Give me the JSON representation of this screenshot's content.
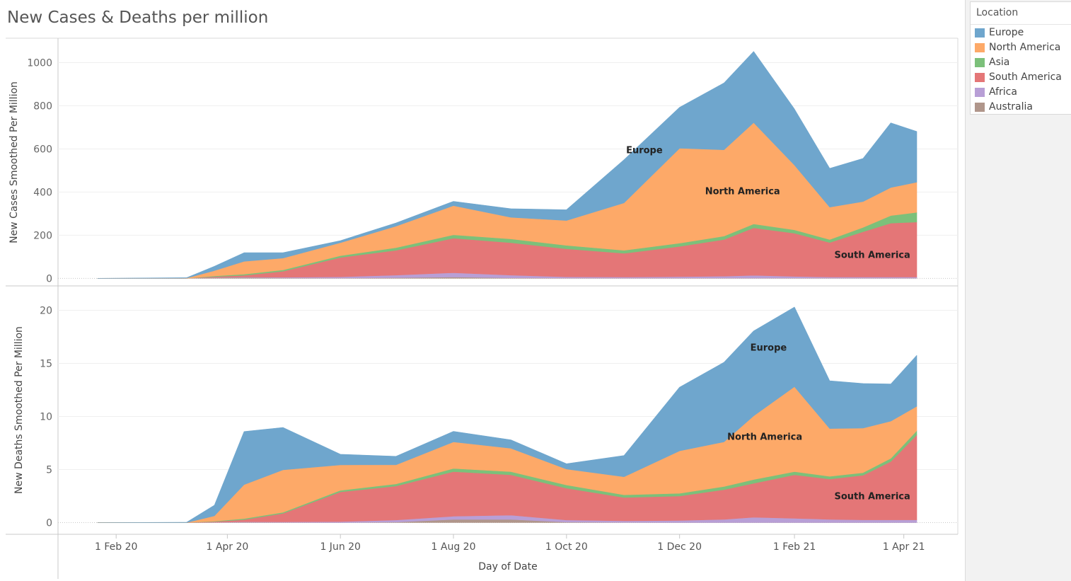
{
  "title": "New Cases & Deaths per million",
  "legend": {
    "title": "Location",
    "items": [
      {
        "label": "Europe",
        "color": "#6fa6cd"
      },
      {
        "label": "North America",
        "color": "#fda968"
      },
      {
        "label": "Asia",
        "color": "#7cc07a"
      },
      {
        "label": "South America",
        "color": "#e47677"
      },
      {
        "label": "Africa",
        "color": "#b89fd6"
      },
      {
        "label": "Australia",
        "color": "#b0968b"
      }
    ]
  },
  "chart_data": {
    "type": "area",
    "stacked": true,
    "xlabel": "Day of Date",
    "x_ticks": [
      "1 Feb 20",
      "1 Apr 20",
      "1 Jun 20",
      "1 Aug 20",
      "1 Oct 20",
      "1 Dec 20",
      "1 Feb 21",
      "1 Apr 21"
    ],
    "xlim": [
      "2020-01-22",
      "2021-04-08"
    ],
    "x": [
      "2020-01-22",
      "2020-03-10",
      "2020-03-25",
      "2020-04-10",
      "2020-05-01",
      "2020-06-01",
      "2020-07-01",
      "2020-08-01",
      "2020-09-01",
      "2020-10-01",
      "2020-11-01",
      "2020-12-01",
      "2020-12-25",
      "2021-01-10",
      "2021-02-01",
      "2021-02-20",
      "2021-03-10",
      "2021-03-25",
      "2021-04-08"
    ],
    "panels": [
      {
        "ylabel": "New Cases Smoothed Per Million",
        "yticks": [
          0,
          200,
          400,
          600,
          800,
          1000
        ],
        "ylim": [
          -35,
          1110
        ],
        "series": [
          {
            "name": "Australia",
            "values": [
              0,
              0,
              4,
              4,
              2,
              1,
              3,
              6,
              2,
              1,
              1,
              1,
              1,
              1,
              1,
              1,
              1,
              1,
              1
            ]
          },
          {
            "name": "Africa",
            "values": [
              0,
              0,
              1,
              2,
              3,
              6,
              12,
              20,
              13,
              6,
              5,
              7,
              9,
              13,
              8,
              5,
              5,
              5,
              5
            ]
          },
          {
            "name": "South America",
            "values": [
              0,
              0,
              3,
              8,
              28,
              90,
              115,
              160,
              150,
              130,
              110,
              140,
              170,
              220,
              200,
              160,
              210,
              250,
              255
            ]
          },
          {
            "name": "Asia",
            "values": [
              0,
              0,
              3,
              5,
              6,
              8,
              12,
              16,
              18,
              16,
              14,
              15,
              16,
              18,
              16,
              14,
              20,
              35,
              45
            ]
          },
          {
            "name": "North America",
            "values": [
              0,
              1,
              25,
              60,
              55,
              60,
              100,
              135,
              100,
              115,
              220,
              440,
              400,
              470,
              300,
              150,
              120,
              130,
              140
            ]
          },
          {
            "name": "Europe",
            "values": [
              0,
              2,
              20,
              40,
              25,
              10,
              15,
              20,
              40,
              50,
              200,
              190,
              310,
              330,
              260,
              180,
              200,
              300,
              235
            ]
          }
        ],
        "annotations": [
          {
            "text": "Europe",
            "date": "2020-11-12",
            "value": 580
          },
          {
            "text": "North America",
            "date": "2021-01-04",
            "value": 390
          },
          {
            "text": "South America",
            "date": "2021-03-15",
            "value": 95
          }
        ]
      },
      {
        "ylabel": "New Deaths Smoothed Per Million",
        "yticks": [
          0,
          5,
          10,
          15,
          20
        ],
        "ylim": [
          -1.1,
          22.3
        ],
        "series": [
          {
            "name": "Australia",
            "values": [
              0,
              0,
              0.02,
              0.03,
              0.02,
              0.01,
              0.05,
              0.3,
              0.3,
              0.05,
              0.02,
              0.01,
              0.01,
              0.01,
              0.01,
              0.01,
              0.01,
              0.01,
              0.01
            ]
          },
          {
            "name": "Africa",
            "values": [
              0,
              0,
              0.02,
              0.05,
              0.05,
              0.08,
              0.2,
              0.3,
              0.4,
              0.2,
              0.15,
              0.2,
              0.3,
              0.5,
              0.4,
              0.3,
              0.25,
              0.25,
              0.25
            ]
          },
          {
            "name": "South America",
            "values": [
              0,
              0,
              0.05,
              0.2,
              0.8,
              2.8,
              3.2,
              4.2,
              3.8,
              3.0,
              2.2,
              2.3,
              2.8,
              3.2,
              4.1,
              3.8,
              4.2,
              5.5,
              8.0
            ]
          },
          {
            "name": "Asia",
            "values": [
              0,
              0,
              0.05,
              0.1,
              0.1,
              0.15,
              0.2,
              0.3,
              0.3,
              0.3,
              0.25,
              0.25,
              0.3,
              0.35,
              0.3,
              0.25,
              0.25,
              0.3,
              0.4
            ]
          },
          {
            "name": "North America",
            "values": [
              0,
              0.01,
              0.5,
              3.2,
              4.0,
              2.4,
              1.8,
              2.5,
              2.2,
              1.5,
              1.7,
              4.0,
              4.2,
              6.0,
              8.0,
              4.5,
              4.2,
              3.5,
              2.3
            ]
          },
          {
            "name": "Europe",
            "values": [
              0,
              0.02,
              1.0,
              5.0,
              4.0,
              1.0,
              0.8,
              1.0,
              0.8,
              0.5,
              2.0,
              6.0,
              7.5,
              8.0,
              7.5,
              4.5,
              4.2,
              3.5,
              4.8
            ]
          }
        ],
        "annotations": [
          {
            "text": "Europe",
            "date": "2021-01-18",
            "value": 16.2
          },
          {
            "text": "North America",
            "date": "2021-01-16",
            "value": 7.8
          },
          {
            "text": "South America",
            "date": "2021-03-15",
            "value": 2.2
          }
        ]
      }
    ]
  }
}
